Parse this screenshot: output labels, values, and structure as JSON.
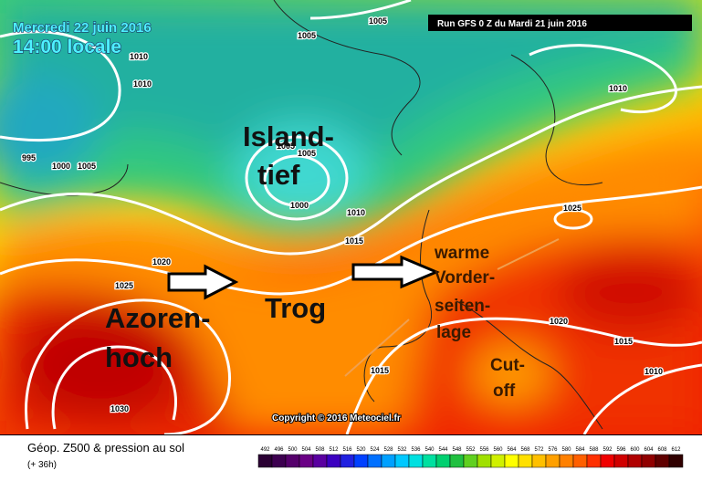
{
  "header": {
    "date": "Mercredi 22 juin 2016",
    "time": "14:00 locale",
    "run": "Run GFS 0 Z du Mardi 21 juin 2016"
  },
  "annotations": {
    "island_1": "Island-",
    "island_2": "tief",
    "azoren_1": "Azoren-",
    "azoren_2": "hoch",
    "trog": "Trog",
    "warm_1": "warme",
    "warm_2": "Vorder-",
    "warm_3": "seiten-",
    "warm_4": "lage",
    "cut_1": "Cut-",
    "cut_2": "off"
  },
  "isobar_labels": [
    "1005",
    "1005",
    "1010",
    "1010",
    "1010",
    "995",
    "1000",
    "1005",
    "1005",
    "1005",
    "1000",
    "1010",
    "1015",
    "1025",
    "1020",
    "1025",
    "1020",
    "1015",
    "1015",
    "1010",
    "1030"
  ],
  "copyright": "Copyright © 2016 Meteociel.fr",
  "legend": {
    "title": "Géop. Z500 & pression au sol",
    "subtitle": "(+ 36h)",
    "scale": [
      "492",
      "496",
      "500",
      "504",
      "508",
      "512",
      "516",
      "520",
      "524",
      "528",
      "532",
      "536",
      "540",
      "544",
      "548",
      "552",
      "556",
      "560",
      "564",
      "568",
      "572",
      "576",
      "580",
      "584",
      "588",
      "592",
      "596",
      "600",
      "604",
      "608",
      "612"
    ],
    "colors": [
      "#2a0033",
      "#3d0050",
      "#55006b",
      "#6a0085",
      "#5a00a0",
      "#3c00c0",
      "#2020e0",
      "#0040ff",
      "#0070ff",
      "#00a0ff",
      "#00c8ff",
      "#00e0e0",
      "#00e0a0",
      "#00d070",
      "#20c040",
      "#60d020",
      "#a0e000",
      "#d0f000",
      "#ffff00",
      "#ffe000",
      "#ffc000",
      "#ffa000",
      "#ff8000",
      "#ff6000",
      "#ff3000",
      "#f00000",
      "#d00000",
      "#b00000",
      "#900000",
      "#600000",
      "#300000"
    ]
  }
}
